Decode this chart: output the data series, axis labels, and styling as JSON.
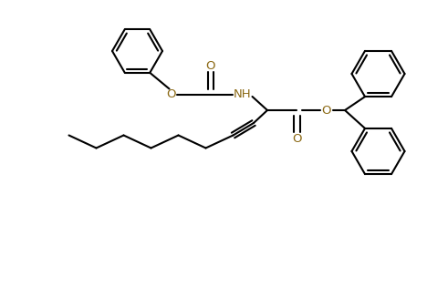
{
  "background_color": "#ffffff",
  "bond_color": "#000000",
  "heteroatom_color": "#8B6914",
  "line_width": 1.5,
  "figsize": [
    4.91,
    3.26
  ],
  "dpi": 100,
  "xlim": [
    0,
    9.8
  ],
  "ylim": [
    0,
    6.52
  ]
}
